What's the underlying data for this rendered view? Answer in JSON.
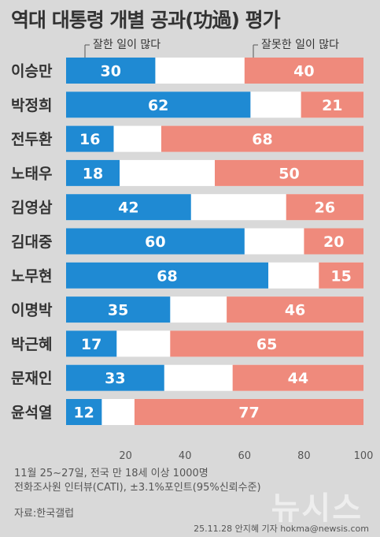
{
  "title": "역대 대통령 개별 공과(功過) 평가",
  "legend": {
    "good_label": "잘한 일이 많다",
    "bad_label": "잘못한 일이 많다"
  },
  "colors": {
    "good": "#1f8ad3",
    "neutral": "#ffffff",
    "bad": "#ef8a7c",
    "background": "#d9d9d9"
  },
  "chart_data": {
    "type": "bar",
    "orientation": "horizontal-stacked",
    "categories": [
      "이승만",
      "박정희",
      "전두환",
      "노태우",
      "김영삼",
      "김대중",
      "노무현",
      "이명박",
      "박근혜",
      "문재인",
      "윤석열"
    ],
    "series": [
      {
        "name": "잘한 일이 많다",
        "values": [
          30,
          62,
          16,
          18,
          42,
          60,
          68,
          35,
          17,
          33,
          12
        ]
      },
      {
        "name": "잘못한 일이 많다",
        "values": [
          40,
          21,
          68,
          50,
          26,
          20,
          15,
          46,
          65,
          44,
          77
        ]
      }
    ],
    "xlim": [
      0,
      100
    ],
    "xticks": [
      20,
      40,
      60,
      80,
      100
    ],
    "grid": false,
    "legend_position": "top"
  },
  "footer": {
    "line1": "11월 25~27일, 전국 만 18세 이상 1000명",
    "line2": "전화조사원 인터뷰(CATI), ±3.1%포인트(95%신뢰수준)",
    "source": "자료:한국갤럽"
  },
  "watermark": "뉴시스",
  "credit": "25.11.28 안지혜 기자 hokma@newsis.com"
}
